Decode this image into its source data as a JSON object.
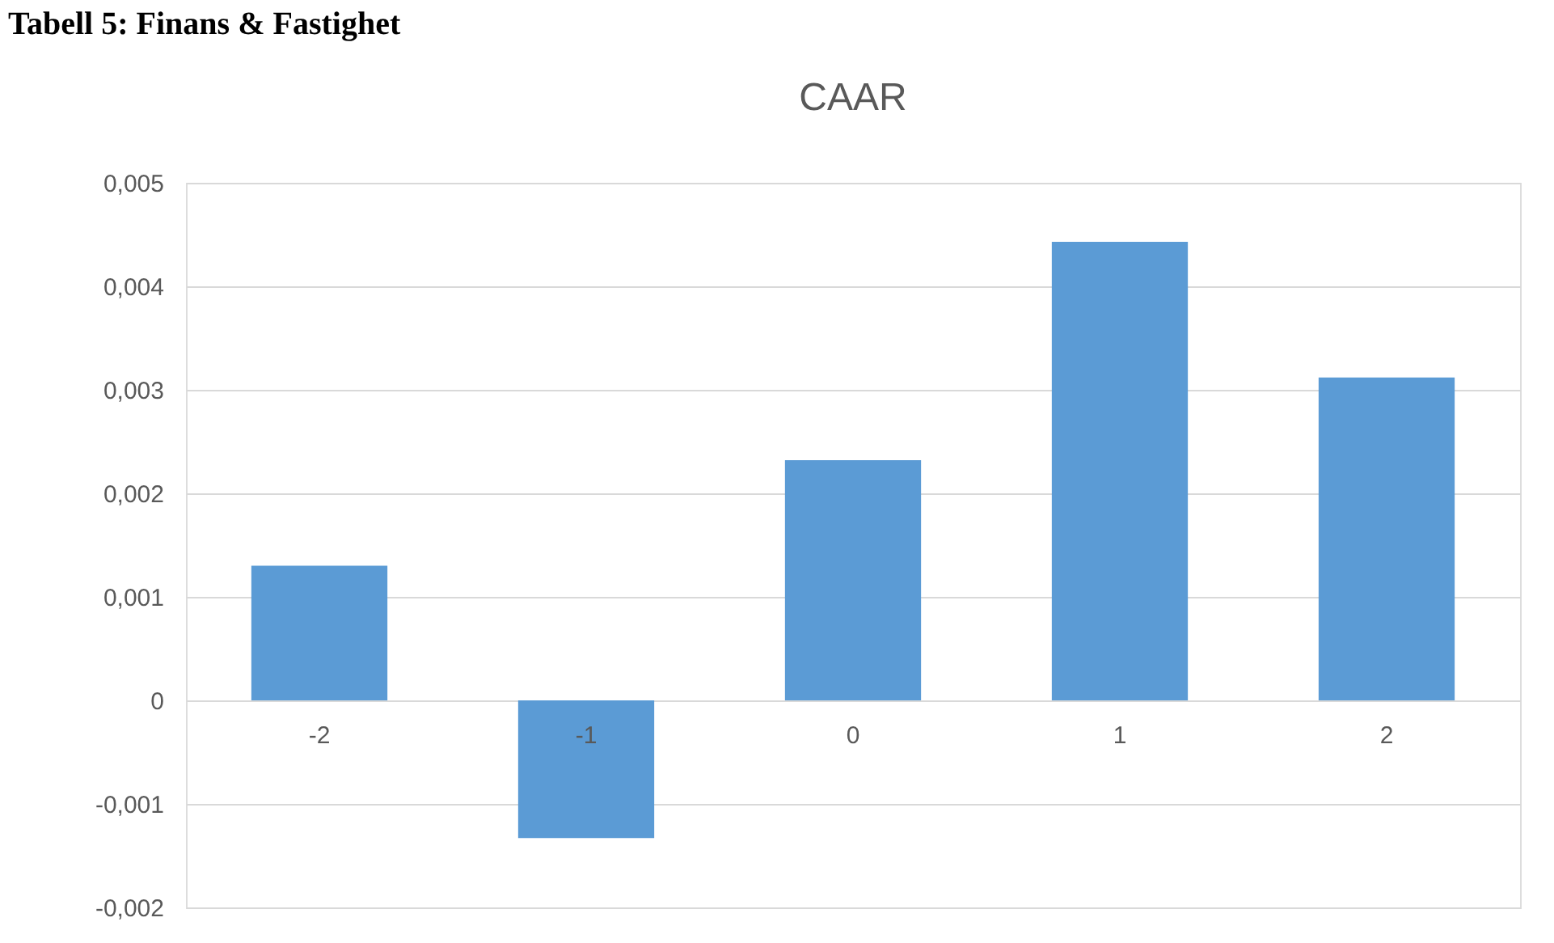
{
  "chart_data": {
    "type": "bar",
    "title": "CAAR",
    "annotations": [
      "Tabell 5: Finans & Fastighet"
    ],
    "categories": [
      "-2",
      "-1",
      "0",
      "1",
      "2"
    ],
    "series": [
      {
        "color": "#5b9bd5",
        "values": [
          0.0013,
          -0.00133,
          0.00232,
          0.00443,
          0.00312
        ]
      }
    ],
    "ylim": [
      -0.002,
      0.005
    ],
    "yticks": [
      {
        "value": -0.002,
        "label": "-0,002"
      },
      {
        "value": -0.001,
        "label": "-0,001"
      },
      {
        "value": 0,
        "label": "0"
      },
      {
        "value": 0.001,
        "label": "0,001"
      },
      {
        "value": 0.002,
        "label": "0,002"
      },
      {
        "value": 0.003,
        "label": "0,003"
      },
      {
        "value": 0.004,
        "label": "0,004"
      },
      {
        "value": 0.005,
        "label": "0,005"
      }
    ],
    "grid": "y"
  }
}
